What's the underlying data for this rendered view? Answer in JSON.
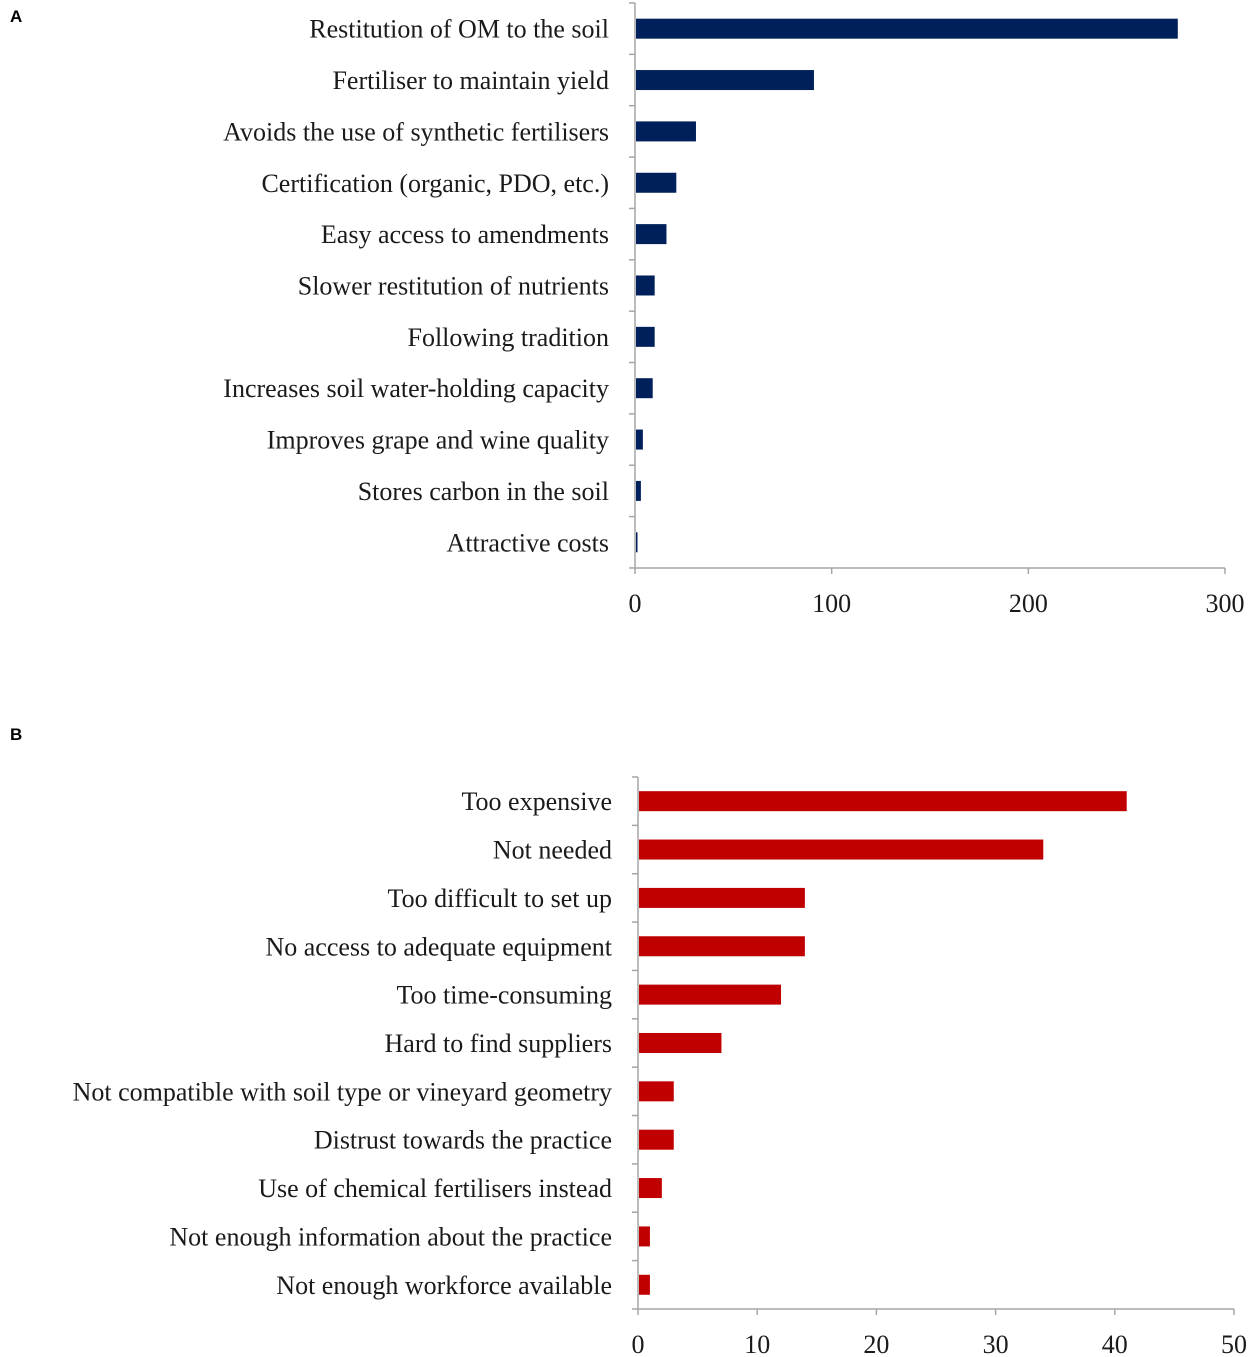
{
  "chart_data": [
    {
      "panel": "A",
      "type": "bar",
      "orientation": "horizontal",
      "color": "#00205c",
      "categories": [
        "Restitution of OM to the soil",
        "Fertiliser to maintain yield",
        "Avoids the use of synthetic fertilisers",
        "Certification (organic, PDO, etc.)",
        "Easy access to amendments",
        "Slower restitution of nutrients",
        "Following tradition",
        "Increases soil water-holding capacity",
        "Improves grape and wine quality",
        "Stores carbon in the soil",
        "Attractive costs"
      ],
      "values": [
        276,
        91,
        31,
        21,
        16,
        10,
        10,
        9,
        4,
        3,
        1
      ],
      "xlim": [
        0,
        300
      ],
      "ticks": [
        "0",
        "100",
        "200",
        "300"
      ],
      "tick_values": [
        0,
        100,
        200,
        300
      ],
      "title": "",
      "xlabel": "",
      "ylabel": ""
    },
    {
      "panel": "B",
      "type": "bar",
      "orientation": "horizontal",
      "color": "#c00000",
      "categories": [
        "Too expensive",
        "Not needed",
        "Too difficult to set up",
        "No access to adequate equipment",
        "Too time-consuming",
        "Hard to find suppliers",
        "Not compatible with soil type or vineyard geometry",
        "Distrust towards the practice",
        "Use of chemical fertilisers instead",
        "Not enough information about the practice",
        "Not enough workforce available"
      ],
      "values": [
        41,
        34,
        14,
        14,
        12,
        7,
        3,
        3,
        2,
        1,
        1
      ],
      "xlim": [
        0,
        50
      ],
      "ticks": [
        "0",
        "10",
        "20",
        "30",
        "40",
        "50"
      ],
      "tick_values": [
        0,
        10,
        20,
        30,
        40,
        50
      ],
      "title": "",
      "xlabel": "",
      "ylabel": ""
    }
  ]
}
